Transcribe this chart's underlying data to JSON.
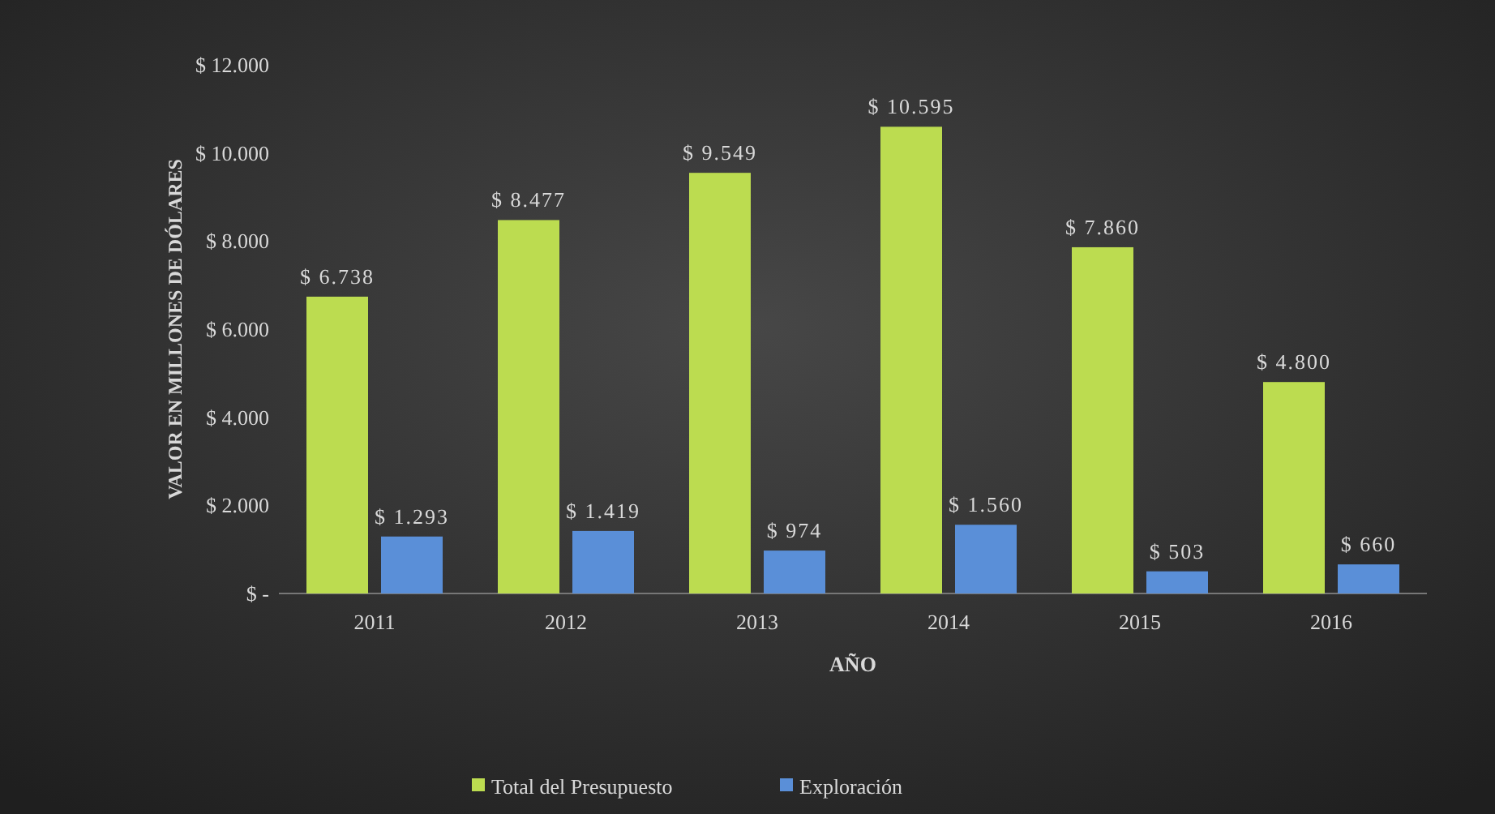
{
  "chart_data": {
    "type": "bar",
    "xlabel": "AÑO",
    "ylabel": "VALOR EN MILLONES DE DÓLARES",
    "categories": [
      "2011",
      "2012",
      "2013",
      "2014",
      "2015",
      "2016"
    ],
    "series": [
      {
        "name": "Total del Presupuesto",
        "color": "#bcdc50",
        "values": [
          6738,
          8477,
          9549,
          10595,
          7860,
          4800
        ],
        "value_labels": [
          "$ 6.738",
          "$ 8.477",
          "$ 9.549",
          "$ 10.595",
          "$ 7.860",
          "$ 4.800"
        ]
      },
      {
        "name": "Exploración",
        "color": "#5a8fd8",
        "values": [
          1293,
          1419,
          974,
          1560,
          503,
          660
        ],
        "value_labels": [
          "$ 1.293",
          "$ 1.419",
          "$ 974",
          "$ 1.560",
          "$ 503",
          "$ 660"
        ]
      }
    ],
    "ylim": [
      0,
      12000
    ],
    "yticks": [
      {
        "value": 0,
        "label": "$ -"
      },
      {
        "value": 2000,
        "label": "$ 2.000"
      },
      {
        "value": 4000,
        "label": "$ 4.000"
      },
      {
        "value": 6000,
        "label": "$ 6.000"
      },
      {
        "value": 8000,
        "label": "$ 8.000"
      },
      {
        "value": 10000,
        "label": "$ 10.000"
      },
      {
        "value": 12000,
        "label": "$ 12.000"
      }
    ],
    "legend": "bottom"
  }
}
